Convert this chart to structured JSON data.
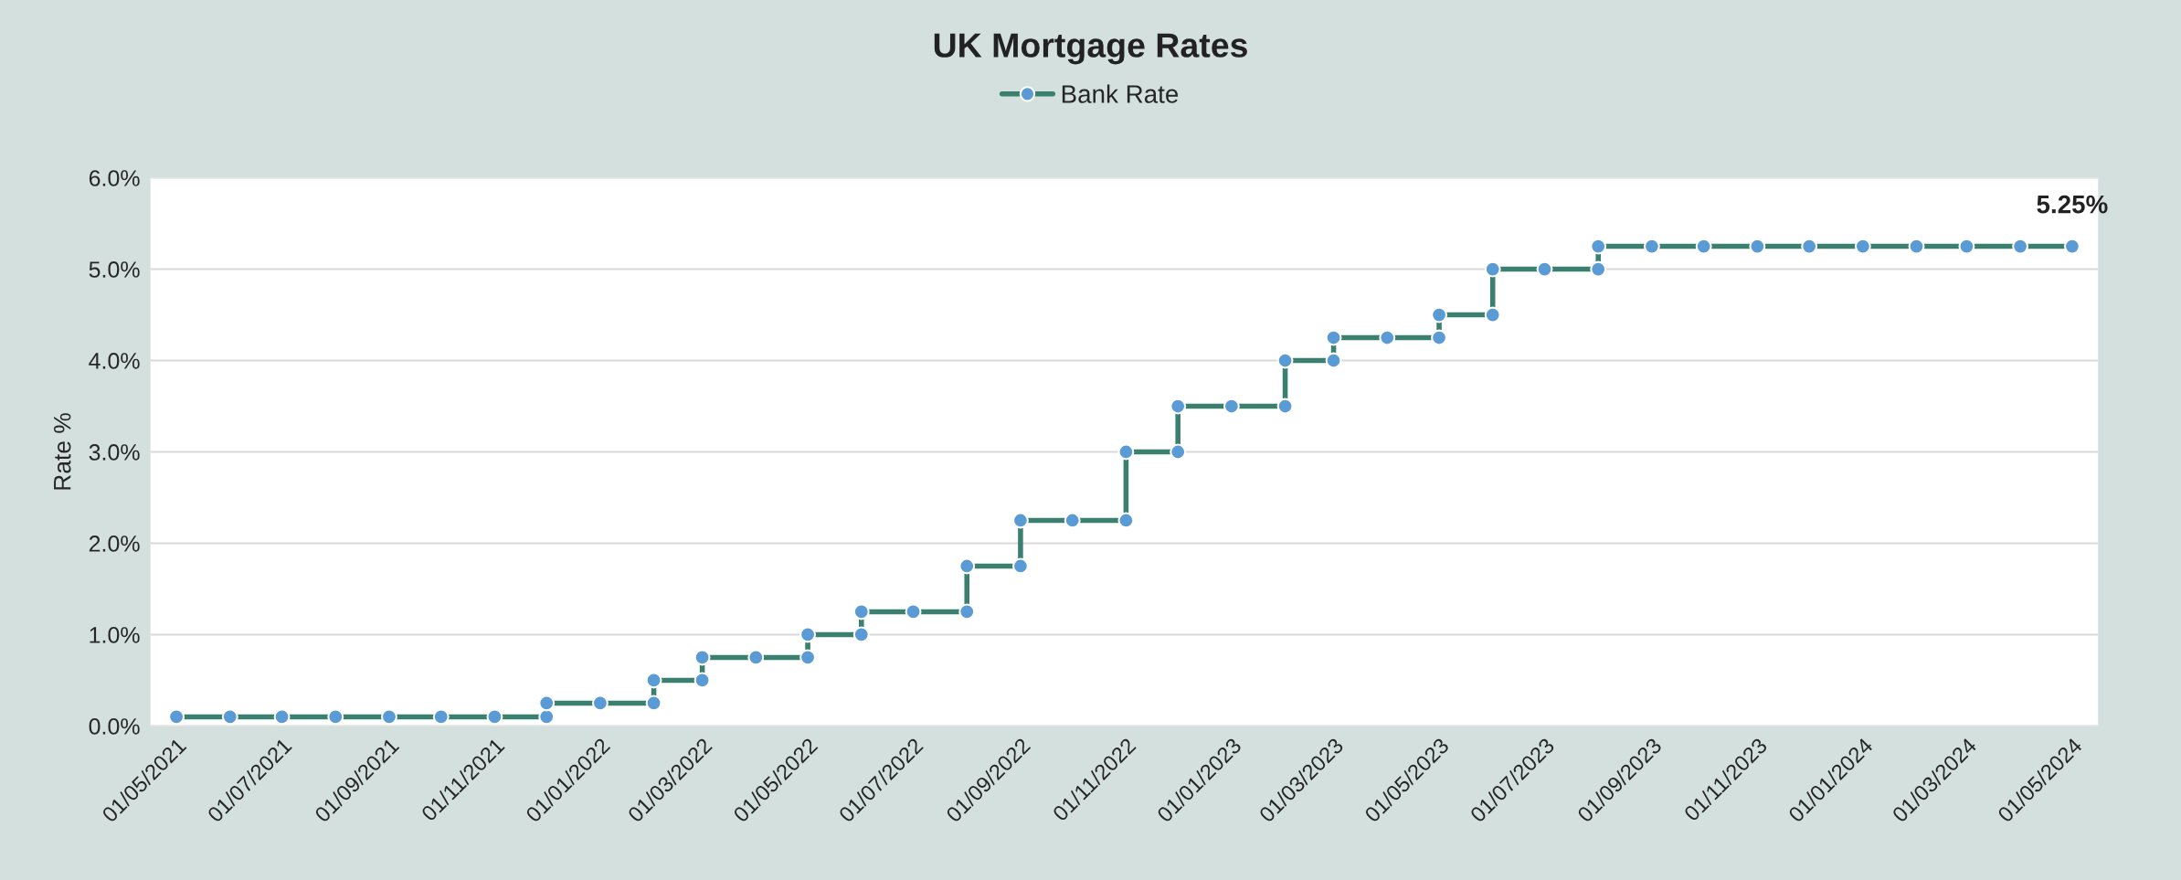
{
  "chart_data": {
    "type": "line",
    "title": "UK Mortgage Rates",
    "ylabel": "Rate %",
    "series": [
      {
        "name": "Bank Rate",
        "color": "#3b7f6e",
        "colors": [
          "#5b9bd5",
          "#5b9bd5",
          "#5b9bd5",
          "#5b9bd5",
          "#5b9bd5",
          "#5b9bd5",
          "#5b9bd5",
          "#5b9bd5",
          "#5b9bd5",
          "#5b9bd5",
          "#5b9bd5",
          "#5b9bd5",
          "#5b9bd5",
          "#5b9bd5",
          "#5b9bd5",
          "#5b9bd5",
          "#5b9bd5",
          "#5b9bd5",
          "#5b9bd5",
          "#5b9bd5",
          "#5b9bd5",
          "#5b9bd5",
          "#5b9bd5",
          "#5b9bd5",
          "#5b9bd5",
          "#5b9bd5",
          "#5b9bd5",
          "#5b9bd5",
          "#5b9bd5",
          "#5b9bd5",
          "#5b9bd5",
          "#5b9bd5",
          "#5b9bd5",
          "#5b9bd5",
          "#5b9bd5",
          "#5b9bd5",
          "#5b9bd5",
          "#5b9bd5",
          "#5b9bd5",
          "#5b9bd5",
          "#5b9bd5",
          "#5b9bd5",
          "#5b9bd5",
          "#5b9bd5",
          "#5b9bd5",
          "#5b9bd5",
          "#5b9bd5",
          "#5b9bd5",
          "#5b9bd5",
          "#5b9bd5",
          "#5b9bd5"
        ],
        "x": [
          "2021-05-01",
          "2021-06-01",
          "2021-07-01",
          "2021-08-01",
          "2021-09-01",
          "2021-10-01",
          "2021-11-01",
          "2021-12-01",
          "2021-12-01",
          "2022-01-01",
          "2022-02-01",
          "2022-02-01",
          "2022-03-01",
          "2022-03-01",
          "2022-04-01",
          "2022-05-01",
          "2022-05-01",
          "2022-06-01",
          "2022-06-01",
          "2022-07-01",
          "2022-08-01",
          "2022-08-01",
          "2022-09-01",
          "2022-09-01",
          "2022-10-01",
          "2022-11-01",
          "2022-11-01",
          "2022-12-01",
          "2022-12-01",
          "2023-01-01",
          "2023-02-01",
          "2023-02-01",
          "2023-03-01",
          "2023-03-01",
          "2023-04-01",
          "2023-05-01",
          "2023-05-01",
          "2023-06-01",
          "2023-06-01",
          "2023-07-01",
          "2023-08-01",
          "2023-08-01",
          "2023-09-01",
          "2023-10-01",
          "2023-11-01",
          "2023-12-01",
          "2024-01-01",
          "2024-02-01",
          "2024-03-01",
          "2024-04-01",
          "2024-05-01"
        ],
        "values": [
          0.1,
          0.1,
          0.1,
          0.1,
          0.1,
          0.1,
          0.1,
          0.1,
          0.25,
          0.25,
          0.25,
          0.5,
          0.5,
          0.75,
          0.75,
          0.75,
          1.0,
          1.0,
          1.25,
          1.25,
          1.25,
          1.75,
          1.75,
          2.25,
          2.25,
          2.25,
          3.0,
          3.0,
          3.5,
          3.5,
          3.5,
          4.0,
          4.0,
          4.25,
          4.25,
          4.25,
          4.5,
          4.5,
          5.0,
          5.0,
          5.0,
          5.25,
          5.25,
          5.25,
          5.25,
          5.25,
          5.25,
          5.25,
          5.25,
          5.25,
          5.25
        ],
        "value_labels": [
          null,
          null,
          null,
          null,
          null,
          null,
          null,
          null,
          null,
          null,
          null,
          null,
          null,
          null,
          null,
          null,
          null,
          null,
          null,
          null,
          null,
          null,
          null,
          null,
          null,
          null,
          null,
          null,
          null,
          null,
          null,
          null,
          null,
          null,
          null,
          null,
          null,
          null,
          null,
          null,
          null,
          null,
          null,
          null,
          null,
          null,
          null,
          null,
          null,
          null,
          "5.25%"
        ]
      }
    ],
    "marker": "circle",
    "line_style": "solid",
    "xlim": [
      "2021-04-16",
      "2024-05-16"
    ],
    "xticks": [
      {
        "value": "2021-05-01",
        "label": "01/05/2021"
      },
      {
        "value": "2021-07-01",
        "label": "01/07/2021"
      },
      {
        "value": "2021-09-01",
        "label": "01/09/2021"
      },
      {
        "value": "2021-11-01",
        "label": "01/11/2021"
      },
      {
        "value": "2022-01-01",
        "label": "01/01/2022"
      },
      {
        "value": "2022-03-01",
        "label": "01/03/2022"
      },
      {
        "value": "2022-05-01",
        "label": "01/05/2022"
      },
      {
        "value": "2022-07-01",
        "label": "01/07/2022"
      },
      {
        "value": "2022-09-01",
        "label": "01/09/2022"
      },
      {
        "value": "2022-11-01",
        "label": "01/11/2022"
      },
      {
        "value": "2023-01-01",
        "label": "01/01/2023"
      },
      {
        "value": "2023-03-01",
        "label": "01/03/2023"
      },
      {
        "value": "2023-05-01",
        "label": "01/05/2023"
      },
      {
        "value": "2023-07-01",
        "label": "01/07/2023"
      },
      {
        "value": "2023-09-01",
        "label": "01/09/2023"
      },
      {
        "value": "2023-11-01",
        "label": "01/11/2023"
      },
      {
        "value": "2024-01-01",
        "label": "01/01/2024"
      },
      {
        "value": "2024-03-01",
        "label": "01/03/2024"
      },
      {
        "value": "2024-05-01",
        "label": "01/05/2024"
      }
    ],
    "ylim": [
      0,
      6
    ],
    "yticks": [
      {
        "value": 0,
        "label": "0.0%"
      },
      {
        "value": 1,
        "label": "1.0%"
      },
      {
        "value": 2,
        "label": "2.0%"
      },
      {
        "value": 3,
        "label": "3.0%"
      },
      {
        "value": 4,
        "label": "4.0%"
      },
      {
        "value": 5,
        "label": "5.0%"
      },
      {
        "value": 6,
        "label": "6.0%"
      }
    ],
    "grid": "y",
    "legend": "top"
  }
}
